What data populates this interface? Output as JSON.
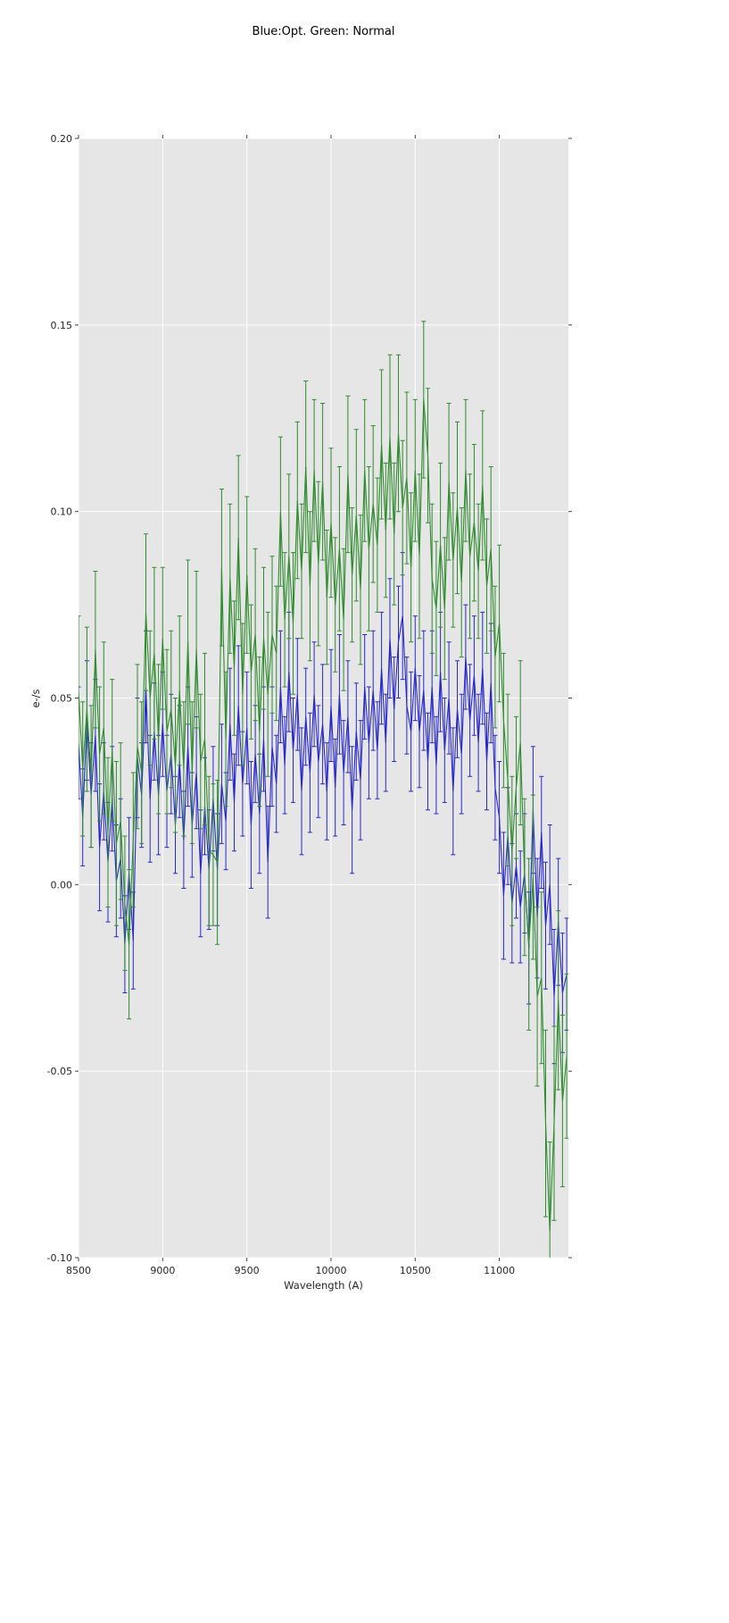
{
  "figure": {
    "title": "Blue:Opt. Green: Normal",
    "xlabel": "Wavelength (A)",
    "ylabel": "e-/s"
  },
  "chart_data": {
    "type": "line",
    "title": "Blue:Opt. Green: Normal",
    "xlabel": "Wavelength (A)",
    "ylabel": "e-/s",
    "xlim": [
      8500,
      11410
    ],
    "ylim": [
      -0.1,
      0.2
    ],
    "grid": true,
    "legend_position": "none",
    "plot_bg": "#e6e6e6",
    "grid_color": "#ffffff",
    "tick_color": "#444444",
    "label_color": "#262626",
    "x_ticks": {
      "values": [
        8500,
        9000,
        9500,
        10000,
        10500,
        11000
      ],
      "labels": [
        "8500",
        "9000",
        "9500",
        "10000",
        "10500",
        "11000"
      ]
    },
    "y_ticks": {
      "values": [
        0.2,
        0.15,
        0.1,
        0.05,
        0.0,
        -0.05,
        -0.1
      ],
      "labels": [
        "0.20",
        "0.15",
        "0.10",
        "0.05",
        "0.00",
        "-0.05",
        "-0.10"
      ]
    },
    "x_start": 8500,
    "x_step": 25,
    "series": [
      {
        "name": "Opt",
        "color": "#2727cc",
        "errorbars": true,
        "values": [
          0.038,
          0.018,
          0.044,
          0.024,
          0.04,
          0.01,
          0.025,
          0.006,
          0.023,
          0.001,
          0.007,
          -0.016,
          0.003,
          -0.015,
          0.034,
          0.024,
          0.053,
          0.023,
          0.041,
          0.024,
          0.043,
          0.025,
          0.035,
          0.016,
          0.033,
          0.012,
          0.037,
          0.016,
          0.03,
          0.003,
          0.021,
          0.004,
          0.023,
          0.004,
          0.027,
          0.017,
          0.043,
          0.022,
          0.048,
          0.027,
          0.042,
          0.016,
          0.035,
          0.019,
          0.039,
          0.006,
          0.037,
          0.027,
          0.053,
          0.032,
          0.057,
          0.036,
          0.051,
          0.025,
          0.045,
          0.03,
          0.051,
          0.033,
          0.043,
          0.025,
          0.048,
          0.026,
          0.051,
          0.03,
          0.045,
          0.02,
          0.041,
          0.028,
          0.053,
          0.038,
          0.052,
          0.036,
          0.058,
          0.038,
          0.066,
          0.047,
          0.065,
          0.072,
          0.048,
          0.041,
          0.058,
          0.041,
          0.052,
          0.033,
          0.053,
          0.032,
          0.057,
          0.036,
          0.05,
          0.025,
          0.047,
          0.035,
          0.061,
          0.044,
          0.056,
          0.038,
          0.058,
          0.033,
          0.054,
          0.026,
          0.018,
          -0.003,
          0.013,
          -0.005,
          0.005,
          -0.006,
          0.003,
          -0.017,
          0.02,
          -0.009,
          0.014,
          -0.011,
          0.0,
          -0.03,
          -0.01,
          -0.029,
          -0.024
        ],
        "errors": [
          0.015,
          0.013,
          0.016,
          0.014,
          0.015,
          0.017,
          0.013,
          0.016,
          0.014,
          0.015,
          0.016,
          0.013,
          0.015,
          0.013,
          0.016,
          0.014,
          0.015,
          0.017,
          0.013,
          0.016,
          0.014,
          0.015,
          0.016,
          0.013,
          0.015,
          0.013,
          0.016,
          0.014,
          0.015,
          0.017,
          0.013,
          0.016,
          0.014,
          0.015,
          0.016,
          0.013,
          0.015,
          0.013,
          0.016,
          0.014,
          0.015,
          0.017,
          0.013,
          0.016,
          0.014,
          0.015,
          0.016,
          0.013,
          0.015,
          0.013,
          0.016,
          0.014,
          0.015,
          0.017,
          0.013,
          0.016,
          0.014,
          0.015,
          0.016,
          0.013,
          0.015,
          0.013,
          0.016,
          0.014,
          0.015,
          0.017,
          0.013,
          0.016,
          0.014,
          0.015,
          0.016,
          0.013,
          0.015,
          0.013,
          0.016,
          0.014,
          0.015,
          0.017,
          0.013,
          0.016,
          0.014,
          0.015,
          0.016,
          0.013,
          0.015,
          0.013,
          0.016,
          0.014,
          0.015,
          0.017,
          0.013,
          0.016,
          0.014,
          0.015,
          0.016,
          0.013,
          0.015,
          0.013,
          0.016,
          0.014,
          0.015,
          0.017,
          0.013,
          0.016,
          0.014,
          0.015,
          0.016,
          0.015,
          0.017,
          0.016,
          0.015,
          0.017,
          0.016,
          0.018,
          0.017,
          0.016,
          0.015
        ]
      },
      {
        "name": "Normal",
        "color": "#2e8b2e",
        "errorbars": true,
        "values": [
          0.052,
          0.031,
          0.047,
          0.029,
          0.063,
          0.035,
          0.042,
          0.014,
          0.036,
          0.011,
          0.017,
          -0.005,
          -0.016,
          0.012,
          0.037,
          0.03,
          0.073,
          0.05,
          0.062,
          0.039,
          0.066,
          0.041,
          0.047,
          0.032,
          0.052,
          0.031,
          0.065,
          0.03,
          0.063,
          0.033,
          0.039,
          0.009,
          0.008,
          0.006,
          0.085,
          0.039,
          0.082,
          0.058,
          0.093,
          0.051,
          0.083,
          0.057,
          0.067,
          0.041,
          0.066,
          0.051,
          0.067,
          0.062,
          0.1,
          0.071,
          0.088,
          0.07,
          0.103,
          0.084,
          0.112,
          0.08,
          0.111,
          0.086,
          0.108,
          0.077,
          0.097,
          0.075,
          0.09,
          0.071,
          0.11,
          0.083,
          0.099,
          0.079,
          0.111,
          0.09,
          0.102,
          0.091,
          0.118,
          0.095,
          0.12,
          0.094,
          0.121,
          0.101,
          0.109,
          0.085,
          0.111,
          0.088,
          0.13,
          0.115,
          0.082,
          0.074,
          0.091,
          0.074,
          0.108,
          0.087,
          0.101,
          0.081,
          0.111,
          0.088,
          0.097,
          0.084,
          0.107,
          0.08,
          0.09,
          0.061,
          0.07,
          0.044,
          0.028,
          0.009,
          0.026,
          0.038,
          0.002,
          -0.016,
          0.002,
          -0.03,
          -0.025,
          -0.064,
          -0.093,
          -0.064,
          -0.031,
          -0.058,
          -0.046
        ],
        "errors": [
          0.02,
          0.018,
          0.022,
          0.019,
          0.021,
          0.018,
          0.023,
          0.02,
          0.019,
          0.022,
          0.021,
          0.018,
          0.02,
          0.018,
          0.022,
          0.019,
          0.021,
          0.018,
          0.023,
          0.02,
          0.019,
          0.022,
          0.021,
          0.018,
          0.02,
          0.018,
          0.022,
          0.019,
          0.021,
          0.018,
          0.023,
          0.02,
          0.019,
          0.022,
          0.021,
          0.018,
          0.02,
          0.018,
          0.022,
          0.019,
          0.021,
          0.018,
          0.023,
          0.02,
          0.019,
          0.022,
          0.021,
          0.018,
          0.02,
          0.018,
          0.022,
          0.019,
          0.021,
          0.018,
          0.023,
          0.02,
          0.019,
          0.022,
          0.021,
          0.018,
          0.02,
          0.018,
          0.022,
          0.019,
          0.021,
          0.018,
          0.023,
          0.02,
          0.019,
          0.022,
          0.021,
          0.018,
          0.02,
          0.018,
          0.022,
          0.019,
          0.021,
          0.018,
          0.023,
          0.02,
          0.019,
          0.022,
          0.021,
          0.018,
          0.02,
          0.018,
          0.022,
          0.019,
          0.021,
          0.018,
          0.023,
          0.02,
          0.019,
          0.022,
          0.021,
          0.018,
          0.02,
          0.018,
          0.022,
          0.019,
          0.021,
          0.018,
          0.023,
          0.02,
          0.019,
          0.022,
          0.021,
          0.023,
          0.022,
          0.024,
          0.023,
          0.025,
          0.024,
          0.026,
          0.024,
          0.023,
          0.022
        ]
      }
    ]
  }
}
